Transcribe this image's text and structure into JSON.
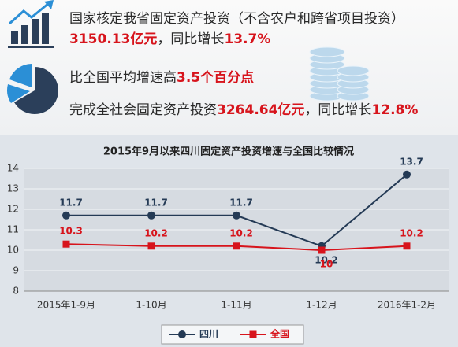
{
  "summary": {
    "lines": [
      {
        "segments": [
          {
            "text": "国家核定我省固定资产投资（不含农户和跨省项目投资）",
            "emphasis": false
          }
        ]
      },
      {
        "segments": [
          {
            "text": "3150.13亿元",
            "emphasis": true
          },
          {
            "text": "，同比增长",
            "emphasis": false
          },
          {
            "text": "13.7%",
            "emphasis": true
          }
        ]
      },
      {
        "segments": [
          {
            "text": "比全国平均增速高",
            "emphasis": false
          },
          {
            "text": "3.5个百分点",
            "emphasis": true
          }
        ]
      },
      {
        "segments": [
          {
            "text": "完成全社会固定资产投资",
            "emphasis": false
          },
          {
            "text": "3264.64亿元",
            "emphasis": true
          },
          {
            "text": "，同比增长",
            "emphasis": false
          },
          {
            "text": "12.8%",
            "emphasis": true
          }
        ]
      }
    ]
  },
  "chart_data": {
    "type": "line",
    "title": "2015年9月以来四川固定资产投资增速与全国比较情况",
    "categories": [
      "2015年1-9月",
      "1-10月",
      "1-11月",
      "1-12月",
      "2016年1-2月"
    ],
    "series": [
      {
        "name": "四川",
        "color": "#243a55",
        "marker": "circle",
        "values": [
          11.7,
          11.7,
          11.7,
          10.2,
          13.7
        ]
      },
      {
        "name": "全国",
        "color": "#d7141c",
        "marker": "square",
        "values": [
          10.3,
          10.2,
          10.2,
          10,
          10.2
        ]
      }
    ],
    "ylim": [
      8,
      14
    ],
    "yticks": [
      8,
      9,
      10,
      11,
      12,
      13,
      14
    ],
    "grid": true,
    "legend": "bottom"
  }
}
